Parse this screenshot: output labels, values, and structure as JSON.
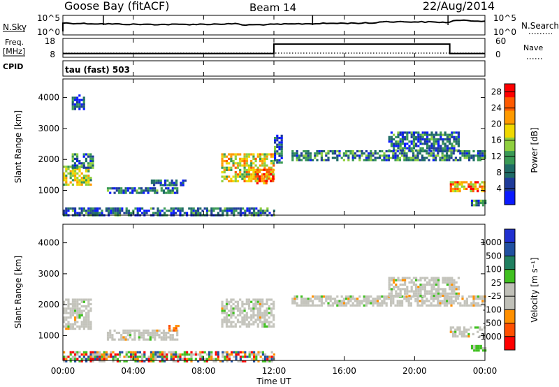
{
  "header": {
    "station": "Goose Bay (fitACF)",
    "beam": "Beam 14",
    "date": "22/Aug/2014"
  },
  "sky_strip": {
    "left_label": "N.Sky",
    "left_ticks": [
      "10^5",
      "10^0"
    ],
    "right_ticks": [
      "10^5",
      "10^0"
    ],
    "right_label": "N.Search",
    "spike_hours": [
      2.3,
      14.2,
      21.9
    ]
  },
  "freq_strip": {
    "left_label_line1": "Freq.",
    "left_label_line2": "[MHz]",
    "left_ticks": [
      18,
      8
    ],
    "right_ticks": [
      60,
      0
    ],
    "right_label": "Nave",
    "cpid_label": "CPID",
    "freq_steps": [
      {
        "from": 0,
        "to": 12,
        "value": 10
      },
      {
        "from": 12,
        "to": 22,
        "value": 15
      },
      {
        "from": 22,
        "to": 24,
        "value": 10
      }
    ]
  },
  "mode_label": "tau (fast) 503",
  "x_axis": {
    "title": "Time UT",
    "ticks": [
      "00:00",
      "04:00",
      "08:00",
      "12:00",
      "16:00",
      "20:00",
      "00:00"
    ],
    "range_hours": [
      0,
      24
    ]
  },
  "colors": {
    "power": [
      "#0a1aff",
      "#1e3a99",
      "#1f6b66",
      "#3a9a55",
      "#8fcf3f",
      "#f0d800",
      "#ff9a00",
      "#ff5a00",
      "#ff0000"
    ],
    "velocity": [
      "#ff0000",
      "#ff5000",
      "#ff9000",
      "#c0c0b8",
      "#c0c0b8",
      "#40c020",
      "#208060",
      "#2050a0",
      "#2030d0"
    ],
    "grey": "#c4c4bc"
  },
  "chart_data": [
    {
      "type": "heatmap",
      "title": "",
      "xlabel": "Time UT",
      "ylabel": "Slant Range [km]",
      "yticks": [
        1000,
        2000,
        3000,
        4000
      ],
      "ylim": [
        200,
        4600
      ],
      "colorbar": {
        "label": "Power [dB]",
        "ticks": [
          4,
          8,
          12,
          16,
          20,
          24,
          28
        ],
        "range": [
          0,
          30
        ]
      },
      "regions": [
        {
          "t0": 0.0,
          "t1": 1.6,
          "r0": 1200,
          "r1": 1800,
          "level": 0.55
        },
        {
          "t0": 0.5,
          "t1": 1.7,
          "r0": 1700,
          "r1": 2200,
          "level": 0.3
        },
        {
          "t0": 2.5,
          "t1": 6.5,
          "r0": 900,
          "r1": 1100,
          "level": 0.25
        },
        {
          "t0": 5.0,
          "t1": 7.0,
          "r0": 1150,
          "r1": 1350,
          "level": 0.2
        },
        {
          "t0": 9.0,
          "t1": 12.0,
          "r0": 1300,
          "r1": 2200,
          "level": 0.6
        },
        {
          "t0": 11.0,
          "t1": 12.0,
          "r0": 1200,
          "r1": 1700,
          "level": 0.85
        },
        {
          "t0": 12.0,
          "t1": 12.4,
          "r0": 1900,
          "r1": 2800,
          "level": 0.25
        },
        {
          "t0": 13.0,
          "t1": 24.0,
          "r0": 1950,
          "r1": 2300,
          "level": 0.3
        },
        {
          "t0": 18.5,
          "t1": 22.5,
          "r0": 2300,
          "r1": 2900,
          "level": 0.25
        },
        {
          "t0": 22.0,
          "t1": 24.0,
          "r0": 1000,
          "r1": 1300,
          "level": 0.7
        },
        {
          "t0": 23.2,
          "t1": 24.0,
          "r0": 550,
          "r1": 700,
          "level": 0.3
        },
        {
          "t0": 0.0,
          "t1": 12.0,
          "r0": 200,
          "r1": 450,
          "level": 0.25
        },
        {
          "t0": 0.5,
          "t1": 1.2,
          "r0": 3600,
          "r1": 4100,
          "level": 0.2
        }
      ]
    },
    {
      "type": "heatmap",
      "title": "",
      "xlabel": "Time UT",
      "ylabel": "Slant Range [km]",
      "yticks": [
        1000,
        2000,
        3000,
        4000
      ],
      "ylim": [
        200,
        4600
      ],
      "colorbar": {
        "label": "Velocity [m s⁻¹]",
        "ticks": [
          1000,
          500,
          100,
          25,
          -25,
          -100,
          -500,
          -1000
        ]
      },
      "regions": [
        {
          "t0": 0.0,
          "t1": 1.6,
          "r0": 1200,
          "r1": 2200,
          "kind": "grey"
        },
        {
          "t0": 2.5,
          "t1": 6.5,
          "r0": 900,
          "r1": 1200,
          "kind": "grey"
        },
        {
          "t0": 6.0,
          "t1": 6.6,
          "r0": 1150,
          "r1": 1350,
          "kind": "orange"
        },
        {
          "t0": 9.0,
          "t1": 12.0,
          "r0": 1300,
          "r1": 2200,
          "kind": "grey"
        },
        {
          "t0": 13.0,
          "t1": 24.0,
          "r0": 1950,
          "r1": 2300,
          "kind": "grey"
        },
        {
          "t0": 18.5,
          "t1": 22.5,
          "r0": 2300,
          "r1": 2900,
          "kind": "grey"
        },
        {
          "t0": 22.0,
          "t1": 24.0,
          "r0": 1000,
          "r1": 1300,
          "kind": "grey"
        },
        {
          "t0": 23.2,
          "t1": 24.0,
          "r0": 550,
          "r1": 700,
          "kind": "green"
        },
        {
          "t0": 0.0,
          "t1": 12.0,
          "r0": 200,
          "r1": 500,
          "kind": "mixed"
        }
      ]
    }
  ]
}
